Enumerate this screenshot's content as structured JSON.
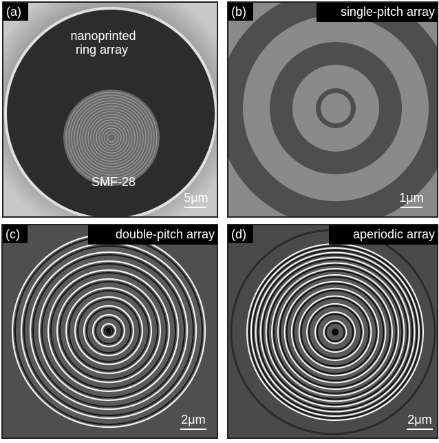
{
  "panels": [
    {
      "label": "(a)",
      "annotations": [
        "nanoprinted",
        "ring array",
        "SMF-28"
      ],
      "scale_bar": "5μm"
    },
    {
      "label": "(b)",
      "caption": "single-pitch array",
      "scale_bar": "1μm"
    },
    {
      "label": "(c)",
      "caption": "double-pitch array",
      "scale_bar": "2μm"
    },
    {
      "label": "(d)",
      "caption": "aperiodic array",
      "scale_bar": "2μm"
    }
  ]
}
